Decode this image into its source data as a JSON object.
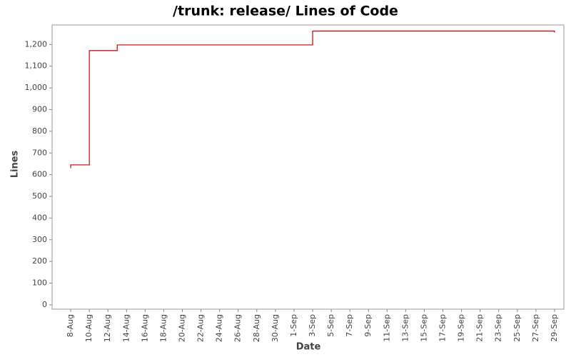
{
  "chart_data": {
    "type": "line",
    "title": "/trunk: release/ Lines of Code",
    "x_label": "Date",
    "y_label": "Lines",
    "step": true,
    "x": [
      "8-Aug",
      "8-Aug",
      "10-Aug",
      "13-Aug",
      "3-Sep",
      "29-Sep",
      "29-Sep"
    ],
    "series": [
      {
        "name": "Lines",
        "color": "#cc0000",
        "values": [
          630,
          645,
          1172,
          1198,
          1262,
          1262,
          1255
        ]
      }
    ],
    "xlim": [
      "6-Aug",
      "30-Sep"
    ],
    "xticks": [
      "8-Aug",
      "10-Aug",
      "12-Aug",
      "14-Aug",
      "16-Aug",
      "18-Aug",
      "20-Aug",
      "22-Aug",
      "24-Aug",
      "26-Aug",
      "28-Aug",
      "30-Aug",
      "1-Sep",
      "3-Sep",
      "5-Sep",
      "7-Sep",
      "9-Sep",
      "11-Sep",
      "13-Sep",
      "15-Sep",
      "17-Sep",
      "19-Sep",
      "21-Sep",
      "23-Sep",
      "25-Sep",
      "27-Sep",
      "29-Sep"
    ],
    "ylim": [
      -20,
      1290
    ],
    "yticks": [
      0,
      100,
      200,
      300,
      400,
      500,
      600,
      700,
      800,
      900,
      {
        "value": 1000,
        "label": "1,000"
      },
      {
        "value": 1100,
        "label": "1,100"
      },
      {
        "value": 1200,
        "label": "1,200"
      }
    ],
    "grid": false
  }
}
